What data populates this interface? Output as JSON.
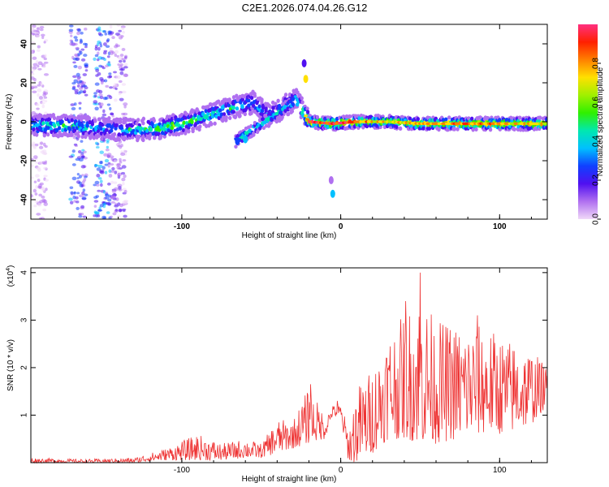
{
  "title": "C2E1.2026.074.04.26.G12",
  "chart_data": [
    {
      "type": "heatmap",
      "xlabel": "Height of straight line (km)",
      "ylabel": "Frequency (Hz)",
      "xlim": [
        -195,
        130
      ],
      "ylim": [
        -50,
        50
      ],
      "xticks": [
        "-100",
        "0",
        "100"
      ],
      "xtick_values": [
        -100,
        0,
        100
      ],
      "yticks": [
        "-40",
        "-20",
        "0",
        "20",
        "40"
      ],
      "ytick_values": [
        -40,
        -20,
        0,
        20,
        40
      ],
      "colorbar": {
        "label": "Normalized spectral amplitude",
        "ticks": [
          "0.0",
          "0.2",
          "0.4",
          "0.6",
          "0.8"
        ],
        "tick_values": [
          0.0,
          0.2,
          0.4,
          0.6,
          0.8
        ],
        "range": [
          0,
          1
        ],
        "colors": [
          "#f0d8f8",
          "#b070f0",
          "#5010f0",
          "#1040ff",
          "#00c0ff",
          "#00e8b0",
          "#30f000",
          "#a0f000",
          "#ffe000",
          "#ff8000",
          "#ff2000",
          "#ff3080"
        ]
      },
      "ridge": [
        {
          "x": -195,
          "y": -2,
          "amp": 0.45
        },
        {
          "x": -175,
          "y": -2,
          "amp": 0.5
        },
        {
          "x": -155,
          "y": -3,
          "amp": 0.4
        },
        {
          "x": -140,
          "y": -4,
          "amp": 0.35
        },
        {
          "x": -125,
          "y": -4,
          "amp": 0.5
        },
        {
          "x": -110,
          "y": -3,
          "amp": 0.55
        },
        {
          "x": -95,
          "y": 0,
          "amp": 0.5
        },
        {
          "x": -80,
          "y": 4,
          "amp": 0.5
        },
        {
          "x": -65,
          "y": 8,
          "amp": 0.45
        },
        {
          "x": -55,
          "y": 10,
          "amp": 0.4
        },
        {
          "x": -45,
          "y": 3,
          "amp": 0.4
        },
        {
          "x": -35,
          "y": 8,
          "amp": 0.45
        },
        {
          "x": -28,
          "y": 12,
          "amp": 0.4
        },
        {
          "x": -20,
          "y": 0,
          "amp": 0.85
        },
        {
          "x": -5,
          "y": -1,
          "amp": 0.95
        },
        {
          "x": 10,
          "y": 0,
          "amp": 0.8
        },
        {
          "x": 30,
          "y": 0,
          "amp": 0.7
        },
        {
          "x": 50,
          "y": -1,
          "amp": 0.75
        },
        {
          "x": 70,
          "y": -1,
          "amp": 0.8
        },
        {
          "x": 90,
          "y": -1,
          "amp": 0.8
        },
        {
          "x": 110,
          "y": -1,
          "amp": 0.75
        },
        {
          "x": 130,
          "y": -1,
          "amp": 0.7
        }
      ],
      "spots": [
        {
          "x": -22,
          "y": 22,
          "amp": 0.7
        },
        {
          "x": -23,
          "y": 30,
          "amp": 0.2
        },
        {
          "x": -5,
          "y": -37,
          "amp": 0.35
        },
        {
          "x": -6,
          "y": -30,
          "amp": 0.15
        },
        {
          "x": -65,
          "y": -10,
          "amp": 0.3
        },
        {
          "x": -60,
          "y": -9,
          "amp": 0.35
        }
      ],
      "streaks": [
        {
          "x": -165,
          "amp": 0.35
        },
        {
          "x": -150,
          "amp": 0.4
        },
        {
          "x": -140,
          "amp": 0.2
        },
        {
          "x": -190,
          "amp": 0.15
        }
      ]
    },
    {
      "type": "line",
      "xlabel": "Height of straight line (km)",
      "ylabel": "SNR (10 * v/v)",
      "yscale_label": "(x10",
      "yscale_exp": "4",
      "yscale_close": ")",
      "xlim": [
        -195,
        130
      ],
      "ylim": [
        0,
        4.1
      ],
      "xticks": [
        "-100",
        "0",
        "100"
      ],
      "xtick_values": [
        -100,
        0,
        100
      ],
      "yticks": [
        "1",
        "2",
        "3",
        "4"
      ],
      "ytick_values": [
        1,
        2,
        3,
        4
      ],
      "color": "#ee3333",
      "envelope": [
        {
          "x": -195,
          "lo": 0.0,
          "hi": 0.1
        },
        {
          "x": -160,
          "lo": 0.0,
          "hi": 0.07
        },
        {
          "x": -130,
          "lo": 0.0,
          "hi": 0.1
        },
        {
          "x": -110,
          "lo": 0.05,
          "hi": 0.3
        },
        {
          "x": -90,
          "lo": 0.05,
          "hi": 0.6
        },
        {
          "x": -75,
          "lo": 0.05,
          "hi": 0.4
        },
        {
          "x": -60,
          "lo": 0.1,
          "hi": 0.5
        },
        {
          "x": -50,
          "lo": 0.1,
          "hi": 0.4
        },
        {
          "x": -40,
          "lo": 0.2,
          "hi": 0.9
        },
        {
          "x": -30,
          "lo": 0.3,
          "hi": 0.9
        },
        {
          "x": -20,
          "lo": 0.4,
          "hi": 1.6
        },
        {
          "x": -10,
          "lo": 0.5,
          "hi": 1.0
        },
        {
          "x": -5,
          "lo": 1.0,
          "hi": 1.2
        },
        {
          "x": 0,
          "lo": 0.9,
          "hi": 1.25
        },
        {
          "x": 5,
          "lo": 0.0,
          "hi": 0.7
        },
        {
          "x": 10,
          "lo": 0.0,
          "hi": 1.6
        },
        {
          "x": 20,
          "lo": 0.2,
          "hi": 2.0
        },
        {
          "x": 30,
          "lo": 0.5,
          "hi": 2.8
        },
        {
          "x": 40,
          "lo": 0.5,
          "hi": 3.1
        },
        {
          "x": 50,
          "lo": 0.4,
          "hi": 3.6
        },
        {
          "x": 60,
          "lo": 0.4,
          "hi": 3.0
        },
        {
          "x": 75,
          "lo": 0.5,
          "hi": 2.9
        },
        {
          "x": 90,
          "lo": 0.6,
          "hi": 2.9
        },
        {
          "x": 105,
          "lo": 0.6,
          "hi": 2.6
        },
        {
          "x": 120,
          "lo": 0.8,
          "hi": 2.4
        },
        {
          "x": 130,
          "lo": 1.2,
          "hi": 2.0
        }
      ],
      "peaks": [
        {
          "x": -19,
          "y": 1.65
        },
        {
          "x": -2,
          "y": 1.3
        },
        {
          "x": 50,
          "y": 4.0
        },
        {
          "x": 41,
          "y": 3.4
        },
        {
          "x": 86,
          "y": 3.1
        }
      ]
    }
  ]
}
